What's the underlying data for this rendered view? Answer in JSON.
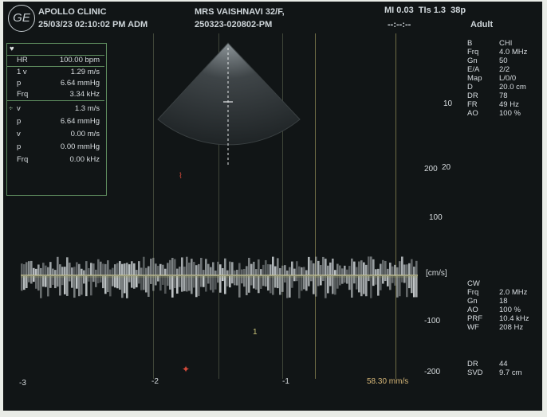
{
  "header": {
    "logo": "GE",
    "clinic": "APOLLO CLINIC",
    "datetime": "25/03/23 02:10:02 PM ADM",
    "patient": "MRS VAISHNAVI 32/F,",
    "study_id": "250323-020802-PM",
    "indices": "MI 0.03  TIs 1.3  38p",
    "timer": "--:--:--",
    "mode": "Adult"
  },
  "measurements": {
    "heart_icon": "♥",
    "hr_label": "HR",
    "hr_value": "100.00 bpm",
    "group1": [
      {
        "k": "1 v",
        "v": "1.29 m/s"
      },
      {
        "k": "p",
        "v": "6.64 mmHg"
      },
      {
        "k": "Frq",
        "v": "3.34 kHz"
      }
    ],
    "group2": [
      {
        "k": "v",
        "v": "1.3 m/s"
      },
      {
        "k": "p",
        "v": "6.64 mmHg"
      },
      {
        "k": "v",
        "v": "0.00 m/s"
      },
      {
        "k": "p",
        "v": "0.00 mmHg"
      },
      {
        "k": "Frq",
        "v": "0.00 kHz"
      }
    ]
  },
  "bmode_params": [
    {
      "k": "B",
      "v": "CHI"
    },
    {
      "k": "Frq",
      "v": "4.0 MHz"
    },
    {
      "k": "Gn",
      "v": "50"
    },
    {
      "k": "E/A",
      "v": "2/2"
    },
    {
      "k": "Map",
      "v": "L/0/0"
    },
    {
      "k": "D",
      "v": "20.0 cm"
    },
    {
      "k": "DR",
      "v": "78"
    },
    {
      "k": "FR",
      "v": "49 Hz"
    },
    {
      "k": "AO",
      "v": "100 %"
    }
  ],
  "cw_params": [
    {
      "k": "CW",
      "v": ""
    },
    {
      "k": "Frq",
      "v": "2.0 MHz"
    },
    {
      "k": "Gn",
      "v": "18"
    },
    {
      "k": "AO",
      "v": "100 %"
    },
    {
      "k": "PRF",
      "v": "10.4 kHz"
    },
    {
      "k": "WF",
      "v": "208 Hz"
    }
  ],
  "cw_params2": [
    {
      "k": "DR",
      "v": "44"
    },
    {
      "k": "SVD",
      "v": "9.7 cm"
    }
  ],
  "depth_labels": {
    "ten": "10",
    "twenty": "20"
  },
  "velocity_scale": {
    "unit": "[cm/s]",
    "ticks": [
      "200",
      "100",
      "-100",
      "-200"
    ]
  },
  "time_axis": [
    "-3",
    "-2",
    "-1"
  ],
  "sweep_speed": "58.30 mm/s",
  "marker_one": "1",
  "colors": {
    "screen": "#111516",
    "text": "#d8dde0",
    "box": "#5f8d5f",
    "baseline": "#c8c69a",
    "marker": "#d54a3a",
    "cursor": "#b9a24c"
  }
}
